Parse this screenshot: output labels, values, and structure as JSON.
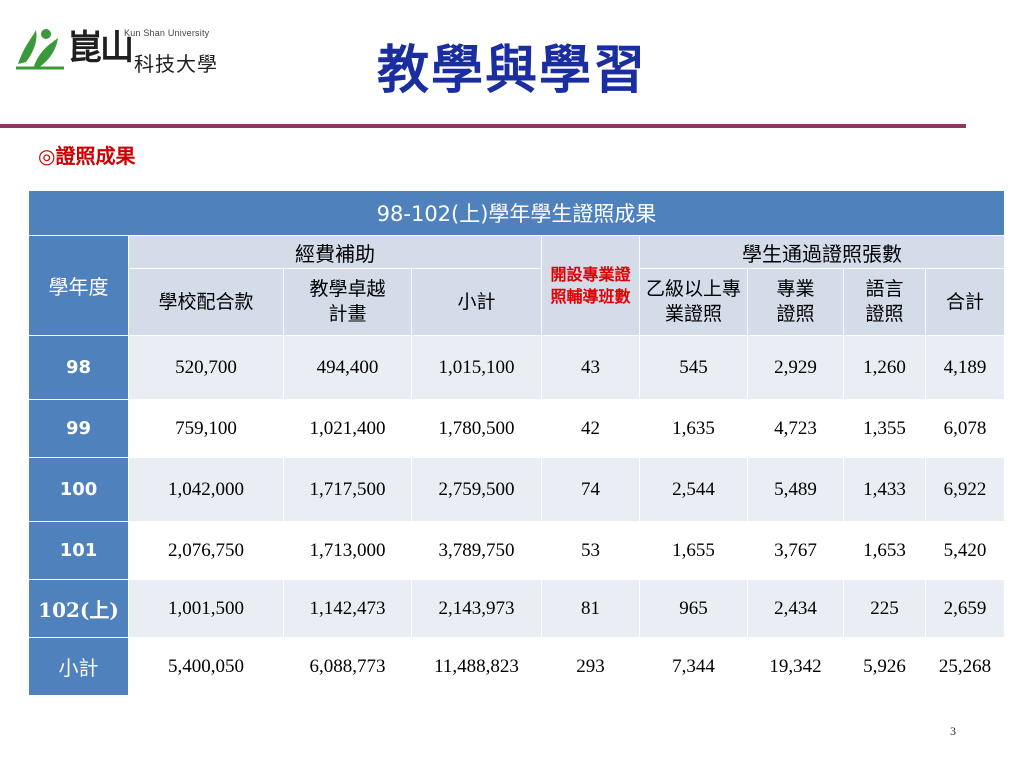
{
  "logo": {
    "name_zh": "崑山",
    "name_zh2": "科技大學",
    "name_en": "Kun Shan University",
    "icon": "leaf-figure-icon"
  },
  "title": "教學與學習",
  "subtitle": "◎證照成果",
  "table": {
    "title": "98-102(上)學年學生證照成果",
    "row_header": "學年度",
    "group_funding": "經費補助",
    "group_red": "開設專業證照輔導班數",
    "group_certs": "學生通過證照張數",
    "col_school": "學校配合款",
    "col_excellence": "教學卓越計畫",
    "col_subtotal": "小計",
    "col_grade_b": "乙級以上專業證照",
    "col_professional": "專業證照",
    "col_language": "語言證照",
    "col_total": "合計",
    "rows": [
      {
        "year": "98",
        "school": "520,700",
        "excellence": "494,400",
        "subtotal": "1,015,100",
        "classes": "43",
        "grade_b": "545",
        "professional": "2,929",
        "language": "1,260",
        "total": "4,189"
      },
      {
        "year": "99",
        "school": "759,100",
        "excellence": "1,021,400",
        "subtotal": "1,780,500",
        "classes": "42",
        "grade_b": "1,635",
        "professional": "4,723",
        "language": "1,355",
        "total": "6,078"
      },
      {
        "year": "100",
        "school": "1,042,000",
        "excellence": "1,717,500",
        "subtotal": "2,759,500",
        "classes": "74",
        "grade_b": "2,544",
        "professional": "5,489",
        "language": "1,433",
        "total": "6,922"
      },
      {
        "year": "101",
        "school": "2,076,750",
        "excellence": "1,713,000",
        "subtotal": "3,789,750",
        "classes": "53",
        "grade_b": "1,655",
        "professional": "3,767",
        "language": "1,653",
        "total": "5,420"
      },
      {
        "year": "102(上)",
        "school": "1,001,500",
        "excellence": "1,142,473",
        "subtotal": "2,143,973",
        "classes": "81",
        "grade_b": "965",
        "professional": "2,434",
        "language": "225",
        "total": "2,659"
      },
      {
        "year": "小計",
        "school": "5,400,050",
        "excellence": "6,088,773",
        "subtotal": "11,488,823",
        "classes": "293",
        "grade_b": "7,344",
        "professional": "19,342",
        "language": "5,926",
        "total": "25,268"
      }
    ]
  },
  "page_number": "3",
  "colors": {
    "header_blue": "#4f81bd",
    "header_light": "#d4dcea",
    "title_blue": "#1b2ea0",
    "accent_red": "#cc0000",
    "rule": "#8a3c5e",
    "logo_green": "#3a9a3a"
  }
}
